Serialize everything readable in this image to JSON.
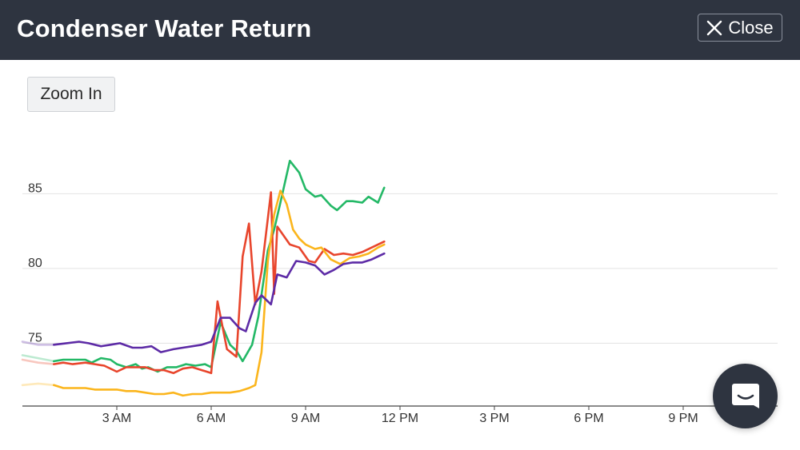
{
  "header": {
    "title": "Condenser Water Return",
    "close_label": "Close",
    "close_icon": "close-x-icon"
  },
  "toolbar": {
    "zoom_label": "Zoom In"
  },
  "chat": {
    "icon": "chat-bubble-icon"
  },
  "colors": {
    "header_bg": "#2e3440",
    "grid": "#e3e3e3",
    "axis": "#444444"
  },
  "chart_data": {
    "type": "line",
    "title": "",
    "xlabel": "",
    "ylabel": "",
    "x_ticks": [
      {
        "h": 3,
        "label": "3 AM"
      },
      {
        "h": 6,
        "label": "6 AM"
      },
      {
        "h": 9,
        "label": "9 AM"
      },
      {
        "h": 12,
        "label": "12 PM"
      },
      {
        "h": 15,
        "label": "3 PM"
      },
      {
        "h": 18,
        "label": "6 PM"
      },
      {
        "h": 21,
        "label": "9 PM"
      }
    ],
    "y_ticks": [
      75,
      80,
      85
    ],
    "xlim": [
      0,
      24
    ],
    "ylim": [
      70.8,
      89.4
    ],
    "grid": true,
    "legend": "none",
    "series": [
      {
        "color": "#23b866",
        "faded_x": [
          0,
          0.5,
          1.0
        ],
        "faded_y": [
          74.2,
          74.0,
          73.8
        ],
        "x": [
          1.0,
          1.3,
          1.6,
          2.0,
          2.2,
          2.5,
          2.8,
          3.0,
          3.3,
          3.6,
          3.8,
          4.0,
          4.3,
          4.6,
          4.9,
          5.2,
          5.5,
          5.8,
          6.0,
          6.3,
          6.6,
          6.8,
          7.0,
          7.3,
          7.5,
          7.8,
          8.0,
          8.2,
          8.5,
          8.8,
          9.0,
          9.3,
          9.5,
          9.8,
          10.0,
          10.3,
          10.5,
          10.8,
          11.0,
          11.3,
          11.5
        ],
        "y": [
          73.8,
          73.9,
          73.9,
          73.9,
          73.7,
          74.0,
          73.9,
          73.6,
          73.4,
          73.6,
          73.3,
          73.4,
          73.1,
          73.4,
          73.4,
          73.6,
          73.5,
          73.6,
          73.4,
          76.4,
          74.9,
          74.5,
          73.8,
          74.9,
          76.8,
          81.2,
          82.6,
          84.4,
          87.2,
          86.4,
          85.3,
          84.8,
          84.9,
          84.2,
          83.9,
          84.5,
          84.5,
          84.4,
          84.8,
          84.4,
          85.4
        ]
      },
      {
        "color": "#e8452c",
        "faded_x": [
          0,
          0.5,
          1.0
        ],
        "faded_y": [
          73.9,
          73.7,
          73.6
        ],
        "x": [
          1.0,
          1.3,
          1.6,
          2.0,
          2.3,
          2.6,
          3.0,
          3.3,
          3.6,
          3.9,
          4.2,
          4.5,
          4.8,
          5.1,
          5.4,
          5.7,
          6.0,
          6.2,
          6.5,
          6.8,
          7.0,
          7.2,
          7.4,
          7.6,
          7.9,
          8.0,
          8.1,
          8.3,
          8.5,
          8.8,
          9.1,
          9.3,
          9.6,
          9.9,
          10.2,
          10.5,
          10.8,
          11.1,
          11.5
        ],
        "y": [
          73.6,
          73.7,
          73.6,
          73.7,
          73.6,
          73.5,
          73.1,
          73.4,
          73.4,
          73.4,
          73.2,
          73.2,
          73.0,
          73.3,
          73.4,
          73.2,
          73.0,
          77.8,
          74.6,
          74.1,
          80.8,
          83.0,
          77.6,
          79.8,
          85.1,
          78.3,
          82.8,
          82.2,
          81.6,
          81.4,
          80.5,
          80.4,
          81.3,
          80.9,
          81.0,
          80.9,
          81.1,
          81.4,
          81.8
        ]
      },
      {
        "color": "#fbb51c",
        "faded_x": [
          0,
          0.5,
          1.0
        ],
        "faded_y": [
          72.2,
          72.3,
          72.2
        ],
        "x": [
          1.0,
          1.3,
          1.6,
          2.0,
          2.3,
          2.6,
          3.0,
          3.3,
          3.6,
          3.9,
          4.2,
          4.5,
          4.8,
          5.1,
          5.4,
          5.7,
          6.0,
          6.3,
          6.6,
          6.9,
          7.2,
          7.4,
          7.6,
          7.8,
          8.0,
          8.2,
          8.4,
          8.6,
          8.8,
          9.0,
          9.3,
          9.5,
          9.8,
          10.1,
          10.4,
          10.7,
          11.0,
          11.3,
          11.5
        ],
        "y": [
          72.2,
          72.0,
          72.0,
          72.0,
          71.9,
          71.9,
          71.9,
          71.8,
          71.8,
          71.7,
          71.6,
          71.6,
          71.7,
          71.5,
          71.6,
          71.6,
          71.7,
          71.7,
          71.7,
          71.8,
          72.0,
          72.2,
          74.4,
          80.5,
          83.6,
          85.2,
          84.3,
          82.6,
          82.0,
          81.6,
          81.3,
          81.4,
          80.6,
          80.3,
          80.7,
          80.8,
          81.0,
          81.4,
          81.6
        ]
      },
      {
        "color": "#5d2ba6",
        "faded_x": [
          0,
          0.5,
          1.0
        ],
        "faded_y": [
          75.1,
          74.9,
          74.9
        ],
        "x": [
          1.0,
          1.4,
          1.8,
          2.1,
          2.5,
          2.8,
          3.1,
          3.5,
          3.8,
          4.1,
          4.4,
          4.8,
          5.1,
          5.4,
          5.7,
          6.0,
          6.3,
          6.6,
          6.9,
          7.1,
          7.4,
          7.6,
          7.9,
          8.1,
          8.4,
          8.7,
          9.0,
          9.3,
          9.6,
          9.9,
          10.2,
          10.5,
          10.8,
          11.1,
          11.5
        ],
        "y": [
          74.9,
          75.0,
          75.1,
          75.0,
          74.8,
          74.9,
          75.0,
          74.7,
          74.7,
          74.8,
          74.4,
          74.6,
          74.7,
          74.8,
          74.9,
          75.1,
          76.7,
          76.7,
          76.0,
          75.8,
          77.7,
          78.2,
          77.6,
          79.6,
          79.4,
          80.5,
          80.4,
          80.2,
          79.6,
          79.9,
          80.3,
          80.4,
          80.4,
          80.6,
          81.0
        ]
      }
    ]
  }
}
